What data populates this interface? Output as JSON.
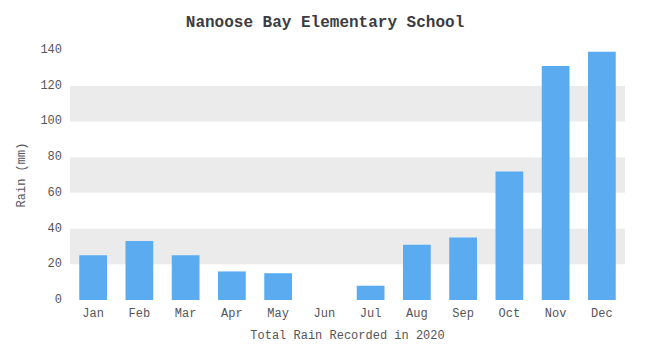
{
  "chart_data": {
    "type": "bar",
    "title": "Nanoose Bay Elementary School",
    "xlabel": "Total Rain Recorded in 2020",
    "ylabel": "Rain (mm)",
    "categories": [
      "Jan",
      "Feb",
      "Mar",
      "Apr",
      "May",
      "Jun",
      "Jul",
      "Aug",
      "Sep",
      "Oct",
      "Nov",
      "Dec"
    ],
    "values": [
      25,
      33,
      25,
      16,
      15,
      0,
      8,
      31,
      35,
      72,
      131,
      139
    ],
    "color": "#5aabf0",
    "ylim": [
      0,
      140
    ],
    "yticks": [
      0,
      20,
      40,
      60,
      80,
      100,
      120,
      140
    ],
    "grid": true
  }
}
